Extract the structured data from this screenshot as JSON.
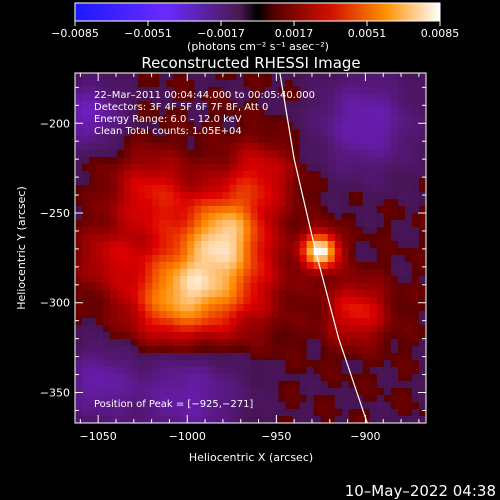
{
  "chart_data": {
    "type": "heatmap",
    "title": "Reconstructed RHESSI Image",
    "xlabel": "Heliocentric X (arcsec)",
    "ylabel": "Heliocentric Y (arcsec)",
    "xlim": [
      -1063,
      -866
    ],
    "ylim": [
      -367,
      -172
    ],
    "xticks": [
      -1050,
      -1000,
      -950,
      -900
    ],
    "yticks": [
      -350,
      -300,
      -250,
      -200
    ],
    "colorbar": {
      "label": "(photons cm⁻² s⁻¹ asec⁻²)",
      "range": [
        -0.0085,
        0.0085
      ],
      "ticks": [
        -0.0085,
        -0.0051,
        -0.0017,
        0.0017,
        0.0051,
        0.0085
      ],
      "tick_labels": [
        "−0.0085",
        "−0.0051",
        "−0.0017",
        "0.0017",
        "0.0051",
        "0.0085"
      ]
    },
    "annotations": [
      "22–Mar–2011 00:04:44.000 to 00:05:40.000",
      "Detectors: 3F 4F 5F 6F 7F 8F, Att 0",
      "Energy Range: 6.0 – 12.0 keV",
      "Clean     Total counts: 1.05E+04"
    ],
    "peak_label": "Position of Peak = [−925,−271]",
    "peak": [
      -925,
      -271
    ],
    "limb_curve": [
      [
        -948,
        -172
      ],
      [
        -940,
        -220
      ],
      [
        -928,
        -271
      ],
      [
        -915,
        -320
      ],
      [
        -899,
        -367
      ]
    ],
    "sources": [
      {
        "x": -925,
        "y": -271,
        "sigma": 7,
        "value": 0.0085
      },
      {
        "x": -985,
        "y": -285,
        "sigma": 22,
        "value": 0.0058
      },
      {
        "x": -978,
        "y": -258,
        "sigma": 14,
        "value": 0.0045
      },
      {
        "x": -1010,
        "y": -300,
        "sigma": 18,
        "value": 0.004
      },
      {
        "x": -1020,
        "y": -240,
        "sigma": 16,
        "value": 0.0032
      },
      {
        "x": -960,
        "y": -230,
        "sigma": 14,
        "value": 0.003
      },
      {
        "x": -905,
        "y": -305,
        "sigma": 12,
        "value": 0.0035
      },
      {
        "x": -1045,
        "y": -275,
        "sigma": 12,
        "value": 0.0022
      },
      {
        "x": -1000,
        "y": -350,
        "sigma": 20,
        "value": -0.0035
      },
      {
        "x": -1055,
        "y": -195,
        "sigma": 12,
        "value": -0.004
      },
      {
        "x": -900,
        "y": -200,
        "sigma": 18,
        "value": -0.0038
      },
      {
        "x": -1050,
        "y": -345,
        "sigma": 14,
        "value": -0.0033
      }
    ]
  },
  "timestamp": "10–May–2022 04:38"
}
